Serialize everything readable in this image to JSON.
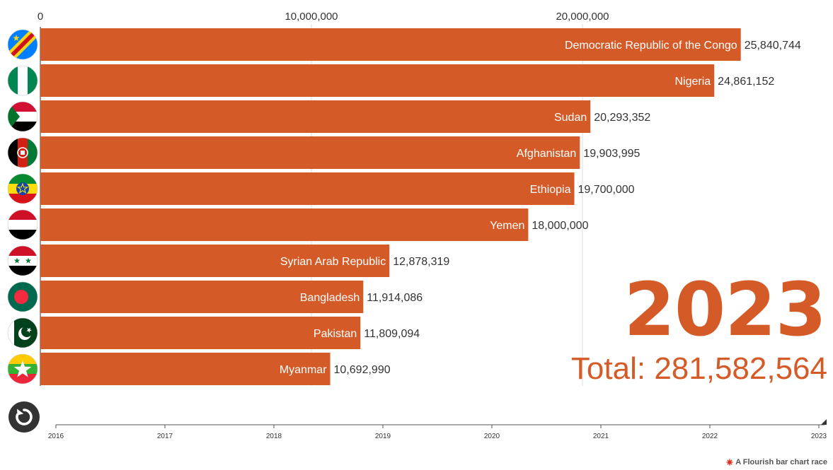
{
  "chart_data": {
    "type": "bar",
    "subtype": "bar-chart-race",
    "orientation": "horizontal",
    "year": "2023",
    "total_label": "Total: 281,582,564",
    "bar_color": "#d45b27",
    "xlim": [
      0,
      26500000
    ],
    "x_ticks": [
      {
        "value": 0,
        "label": "0"
      },
      {
        "value": 10000000,
        "label": "10,000,000"
      },
      {
        "value": 20000000,
        "label": "20,000,000"
      }
    ],
    "categories": [
      "Democratic Republic of the Congo",
      "Nigeria",
      "Sudan",
      "Afghanistan",
      "Ethiopia",
      "Yemen",
      "Syrian Arab Republic",
      "Bangladesh",
      "Pakistan",
      "Myanmar"
    ],
    "values": [
      25840744,
      24861152,
      20293352,
      19903995,
      19700000,
      18000000,
      12878319,
      11914086,
      11809094,
      10692990
    ],
    "value_labels": [
      "25,840,744",
      "24,861,152",
      "20,293,352",
      "19,903,995",
      "19,700,000",
      "18,000,000",
      "12,878,319",
      "11,914,086",
      "11,809,094",
      "10,692,990"
    ],
    "flags": [
      "flag-cd-icon",
      "flag-ng-icon",
      "flag-sd-icon",
      "flag-af-icon",
      "flag-et-icon",
      "flag-ye-icon",
      "flag-sy-icon",
      "flag-bd-icon",
      "flag-pk-icon",
      "flag-mm-icon"
    ],
    "timeline": {
      "years": [
        "2016",
        "2017",
        "2018",
        "2019",
        "2020",
        "2021",
        "2022",
        "2023"
      ],
      "current": "2023"
    }
  },
  "controls": {
    "replay_icon": "replay-icon"
  },
  "footer": {
    "credit": "A Flourish bar chart race",
    "credit_icon": "flourish-logo-icon"
  }
}
